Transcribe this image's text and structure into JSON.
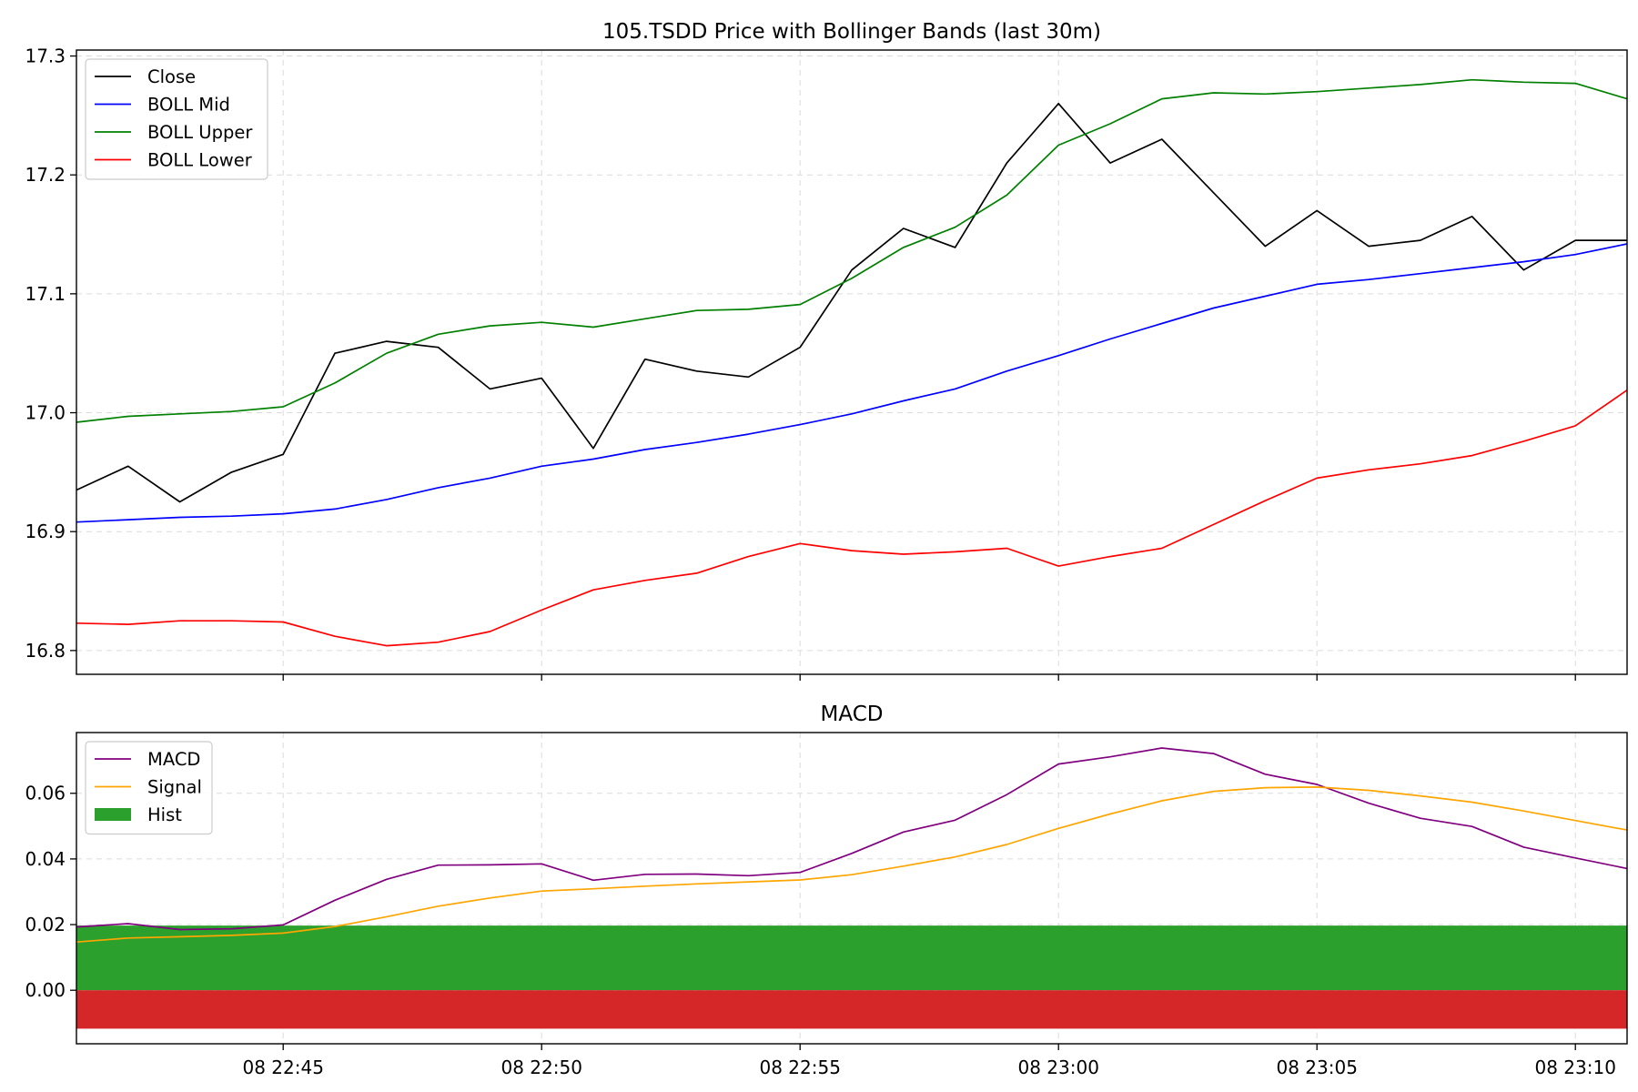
{
  "chart_data": [
    {
      "type": "line",
      "title": "105.TSDD Price with Bollinger Bands (last 30m)",
      "x": [
        "22:41",
        "22:42",
        "22:43",
        "22:44",
        "22:45",
        "22:46",
        "22:47",
        "22:48",
        "22:49",
        "22:50",
        "22:51",
        "22:52",
        "22:53",
        "22:54",
        "22:55",
        "22:56",
        "22:57",
        "22:58",
        "22:59",
        "23:00",
        "23:01",
        "23:02",
        "23:03",
        "23:04",
        "23:05",
        "23:06",
        "23:07",
        "23:08",
        "23:09",
        "23:10",
        "23:11"
      ],
      "ylim": [
        16.78,
        17.305
      ],
      "yticks": [
        16.8,
        16.9,
        17.0,
        17.1,
        17.2,
        17.3
      ],
      "ytick_labels": [
        "16.8",
        "16.9",
        "17.0",
        "17.1",
        "17.2",
        "17.3"
      ],
      "grid": true,
      "legend": "upper-left",
      "series": [
        {
          "name": "Close",
          "color": "#000000",
          "values": [
            16.935,
            16.955,
            16.925,
            16.95,
            16.965,
            17.05,
            17.06,
            17.055,
            17.02,
            17.029,
            16.97,
            17.045,
            17.035,
            17.03,
            17.055,
            17.12,
            17.155,
            17.139,
            17.21,
            17.26,
            17.21,
            17.23,
            17.185,
            17.14,
            17.17,
            17.14,
            17.145,
            17.165,
            17.12,
            17.145,
            17.145
          ]
        },
        {
          "name": "BOLL Mid",
          "color": "#0000ff",
          "values": [
            16.908,
            16.91,
            16.912,
            16.913,
            16.915,
            16.919,
            16.927,
            16.937,
            16.945,
            16.955,
            16.961,
            16.969,
            16.975,
            16.982,
            16.99,
            16.999,
            17.01,
            17.02,
            17.035,
            17.048,
            17.062,
            17.075,
            17.088,
            17.098,
            17.108,
            17.112,
            17.117,
            17.122,
            17.127,
            17.133,
            17.142
          ]
        },
        {
          "name": "BOLL Upper",
          "color": "#008000",
          "values": [
            16.992,
            16.997,
            16.999,
            17.001,
            17.005,
            17.025,
            17.05,
            17.066,
            17.073,
            17.076,
            17.072,
            17.079,
            17.086,
            17.087,
            17.091,
            17.113,
            17.139,
            17.156,
            17.183,
            17.225,
            17.243,
            17.264,
            17.269,
            17.268,
            17.27,
            17.273,
            17.276,
            17.28,
            17.278,
            17.277,
            17.264
          ]
        },
        {
          "name": "BOLL Lower",
          "color": "#ff0000",
          "values": [
            16.823,
            16.822,
            16.825,
            16.825,
            16.824,
            16.812,
            16.804,
            16.807,
            16.816,
            16.834,
            16.851,
            16.859,
            16.865,
            16.879,
            16.89,
            16.884,
            16.881,
            16.883,
            16.886,
            16.871,
            16.879,
            16.886,
            16.906,
            16.926,
            16.945,
            16.952,
            16.957,
            16.964,
            16.976,
            16.989,
            17.019
          ]
        }
      ]
    },
    {
      "type": "line",
      "title": "MACD",
      "x": [
        "22:41",
        "22:42",
        "22:43",
        "22:44",
        "22:45",
        "22:46",
        "22:47",
        "22:48",
        "22:49",
        "22:50",
        "22:51",
        "22:52",
        "22:53",
        "22:54",
        "22:55",
        "22:56",
        "22:57",
        "22:58",
        "22:59",
        "23:00",
        "23:01",
        "23:02",
        "23:03",
        "23:04",
        "23:05",
        "23:06",
        "23:07",
        "23:08",
        "23:09",
        "23:10",
        "23:11"
      ],
      "ylim": [
        -0.0163,
        0.0785
      ],
      "yticks": [
        0.0,
        0.02,
        0.04,
        0.06
      ],
      "ytick_labels": [
        "0.00",
        "0.02",
        "0.04",
        "0.06"
      ],
      "xticks": [
        "08 22:45",
        "08 22:50",
        "08 22:55",
        "08 23:00",
        "08 23:05",
        "08 23:10"
      ],
      "grid": true,
      "legend": "upper-left",
      "series": [
        {
          "name": "MACD",
          "color": "#800080",
          "values": [
            0.0193,
            0.0203,
            0.0185,
            0.0187,
            0.0199,
            0.0274,
            0.0338,
            0.0381,
            0.0382,
            0.0385,
            0.0335,
            0.0353,
            0.0354,
            0.0349,
            0.0359,
            0.0417,
            0.0482,
            0.0518,
            0.0596,
            0.0689,
            0.0711,
            0.0738,
            0.0721,
            0.0658,
            0.0627,
            0.057,
            0.0524,
            0.0499,
            0.0436,
            0.0403,
            0.0371
          ]
        },
        {
          "name": "Signal",
          "color": "#ffa500",
          "values": [
            0.0147,
            0.0159,
            0.0163,
            0.0167,
            0.0174,
            0.0194,
            0.0224,
            0.0256,
            0.0281,
            0.0302,
            0.0309,
            0.0317,
            0.0324,
            0.033,
            0.0336,
            0.0352,
            0.0378,
            0.0406,
            0.0444,
            0.0493,
            0.0537,
            0.0577,
            0.0606,
            0.0617,
            0.0619,
            0.0609,
            0.0592,
            0.0573,
            0.0546,
            0.0517,
            0.0488
          ]
        }
      ],
      "hist": {
        "name": "Hist",
        "legend_color": "#2ca02c",
        "positive_color": "#2ca02c",
        "negative_color": "#d62728",
        "positive_value": 0.0197,
        "negative_value": -0.0117
      }
    }
  ]
}
